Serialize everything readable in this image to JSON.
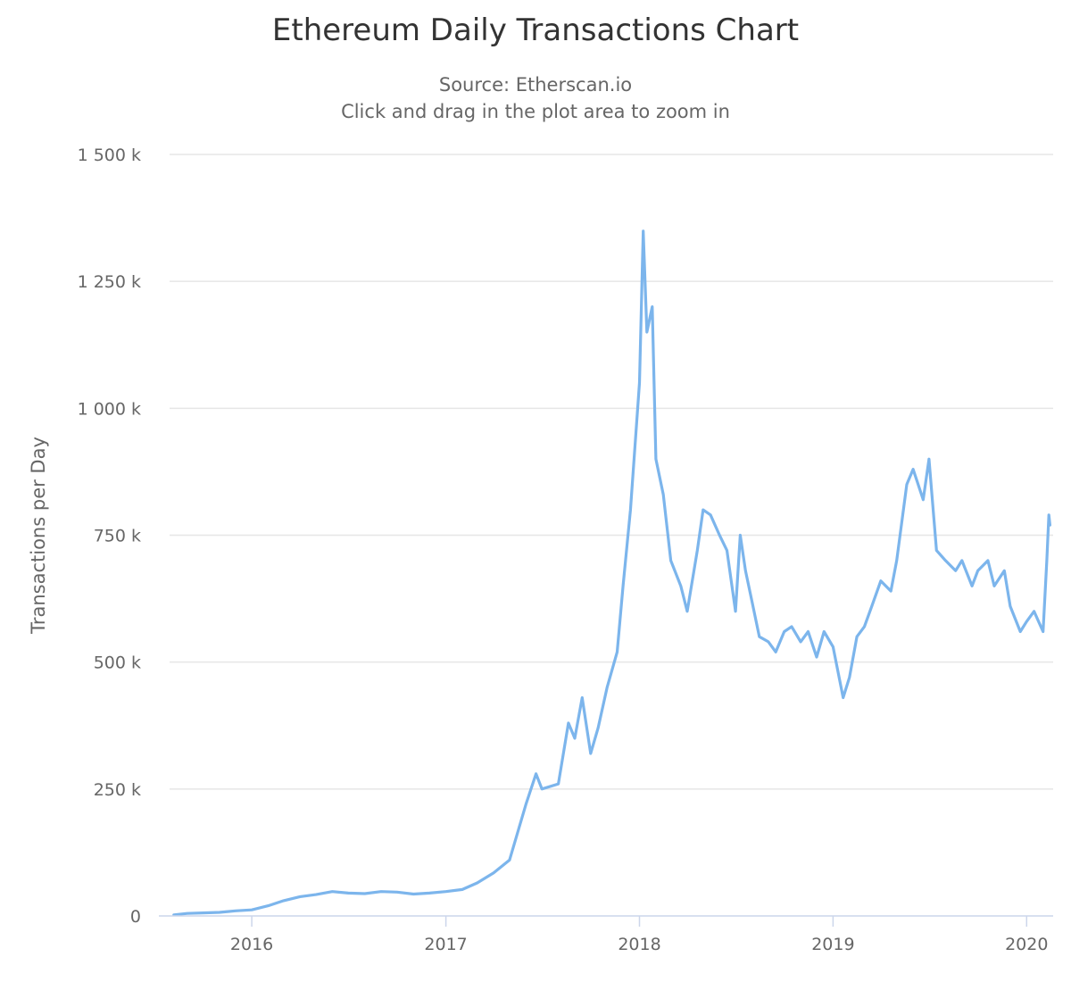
{
  "title": "Ethereum Daily Transactions Chart",
  "subtitle_lines": [
    "Source: Etherscan.io",
    "Click and drag in the plot area to zoom in"
  ],
  "colors": {
    "series": "#7cb5ec",
    "grid": "#e6e6e6",
    "axis": "#ccd6eb",
    "label": "#666666",
    "title": "#333333"
  },
  "chart_data": {
    "type": "line",
    "title": "Ethereum Daily Transactions Chart",
    "subtitle": "Source: Etherscan.io",
    "xlabel": "",
    "ylabel": "Transactions per Day",
    "x_type": "datetime",
    "xlim": [
      "2015-07-30",
      "2020-02-20"
    ],
    "ylim": [
      0,
      1500000
    ],
    "y_tick_values": [
      0,
      250000,
      500000,
      750000,
      1000000,
      1250000,
      1500000
    ],
    "y_tick_labels": [
      "0",
      "250 k",
      "500 k",
      "750 k",
      "1 000 k",
      "1 250 k",
      "1 500 k"
    ],
    "x_tick_values": [
      "2016-01-01",
      "2017-01-01",
      "2018-01-01",
      "2019-01-01",
      "2020-01-01"
    ],
    "x_tick_labels": [
      "2016",
      "2017",
      "2018",
      "2019",
      "2020"
    ],
    "grid": true,
    "legend": "none",
    "series": [
      {
        "name": "",
        "points": [
          [
            "2015-08-07",
            2000
          ],
          [
            "2015-09-01",
            5000
          ],
          [
            "2015-10-01",
            6000
          ],
          [
            "2015-11-01",
            7000
          ],
          [
            "2015-12-01",
            10000
          ],
          [
            "2016-01-01",
            12000
          ],
          [
            "2016-02-01",
            20000
          ],
          [
            "2016-03-01",
            30000
          ],
          [
            "2016-04-01",
            38000
          ],
          [
            "2016-05-01",
            42000
          ],
          [
            "2016-06-01",
            48000
          ],
          [
            "2016-07-01",
            45000
          ],
          [
            "2016-08-01",
            44000
          ],
          [
            "2016-09-01",
            48000
          ],
          [
            "2016-10-01",
            47000
          ],
          [
            "2016-11-01",
            43000
          ],
          [
            "2016-12-01",
            45000
          ],
          [
            "2017-01-01",
            48000
          ],
          [
            "2017-02-01",
            52000
          ],
          [
            "2017-03-01",
            65000
          ],
          [
            "2017-04-01",
            85000
          ],
          [
            "2017-05-01",
            110000
          ],
          [
            "2017-06-01",
            220000
          ],
          [
            "2017-06-20",
            280000
          ],
          [
            "2017-07-01",
            250000
          ],
          [
            "2017-08-01",
            260000
          ],
          [
            "2017-08-20",
            380000
          ],
          [
            "2017-09-01",
            350000
          ],
          [
            "2017-09-15",
            430000
          ],
          [
            "2017-10-01",
            320000
          ],
          [
            "2017-10-15",
            370000
          ],
          [
            "2017-11-01",
            450000
          ],
          [
            "2017-11-20",
            520000
          ],
          [
            "2017-12-01",
            650000
          ],
          [
            "2017-12-15",
            800000
          ],
          [
            "2018-01-01",
            1050000
          ],
          [
            "2018-01-05",
            1220000
          ],
          [
            "2018-01-08",
            1349000
          ],
          [
            "2018-01-15",
            1150000
          ],
          [
            "2018-01-25",
            1200000
          ],
          [
            "2018-02-01",
            900000
          ],
          [
            "2018-02-15",
            830000
          ],
          [
            "2018-03-01",
            700000
          ],
          [
            "2018-03-20",
            650000
          ],
          [
            "2018-04-01",
            600000
          ],
          [
            "2018-04-20",
            720000
          ],
          [
            "2018-05-01",
            800000
          ],
          [
            "2018-05-15",
            790000
          ],
          [
            "2018-06-01",
            750000
          ],
          [
            "2018-06-15",
            720000
          ],
          [
            "2018-07-01",
            600000
          ],
          [
            "2018-07-10",
            750000
          ],
          [
            "2018-07-20",
            680000
          ],
          [
            "2018-08-01",
            620000
          ],
          [
            "2018-08-15",
            550000
          ],
          [
            "2018-09-01",
            540000
          ],
          [
            "2018-09-15",
            520000
          ],
          [
            "2018-10-01",
            560000
          ],
          [
            "2018-10-15",
            570000
          ],
          [
            "2018-11-01",
            540000
          ],
          [
            "2018-11-15",
            560000
          ],
          [
            "2018-12-01",
            510000
          ],
          [
            "2018-12-15",
            560000
          ],
          [
            "2019-01-01",
            530000
          ],
          [
            "2019-01-20",
            430000
          ],
          [
            "2019-02-01",
            470000
          ],
          [
            "2019-02-15",
            550000
          ],
          [
            "2019-03-01",
            570000
          ],
          [
            "2019-03-15",
            610000
          ],
          [
            "2019-04-01",
            660000
          ],
          [
            "2019-04-20",
            640000
          ],
          [
            "2019-05-01",
            700000
          ],
          [
            "2019-05-20",
            850000
          ],
          [
            "2019-06-01",
            880000
          ],
          [
            "2019-06-20",
            820000
          ],
          [
            "2019-07-01",
            900000
          ],
          [
            "2019-07-15",
            720000
          ],
          [
            "2019-08-01",
            700000
          ],
          [
            "2019-08-20",
            680000
          ],
          [
            "2019-09-01",
            700000
          ],
          [
            "2019-09-20",
            650000
          ],
          [
            "2019-10-01",
            680000
          ],
          [
            "2019-10-20",
            700000
          ],
          [
            "2019-11-01",
            650000
          ],
          [
            "2019-11-20",
            680000
          ],
          [
            "2019-12-01",
            610000
          ],
          [
            "2019-12-20",
            560000
          ],
          [
            "2020-01-01",
            580000
          ],
          [
            "2020-01-15",
            600000
          ],
          [
            "2020-02-01",
            560000
          ],
          [
            "2020-02-08",
            700000
          ],
          [
            "2020-02-12",
            790000
          ],
          [
            "2020-02-14",
            770000
          ]
        ]
      }
    ]
  }
}
